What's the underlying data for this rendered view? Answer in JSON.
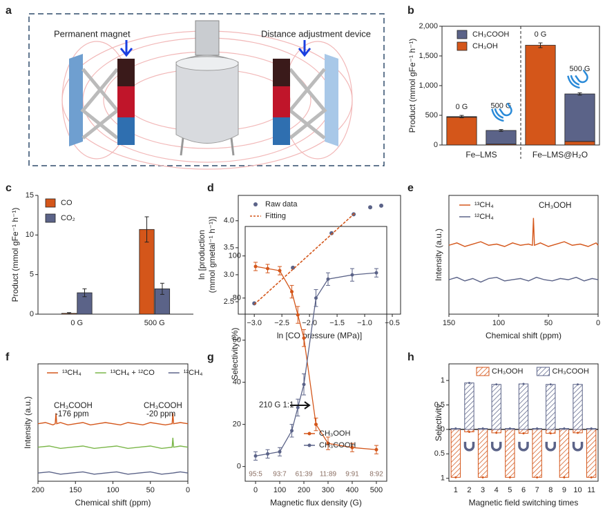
{
  "illustration": {
    "panel": "a",
    "labels": [
      "Permanent magnet",
      "Distance adjustment device"
    ]
  },
  "chart_data": [
    {
      "panel": "b",
      "type": "stacked_bar",
      "categories": [
        "0 G",
        "500 G",
        "0 G",
        "500 G"
      ],
      "group_labels": [
        "Fe–LMS",
        "Fe–LMS@H₂O"
      ],
      "ylabel": "Product (mmol gFe⁻¹ h⁻¹)",
      "ylim": [
        0,
        2000
      ],
      "yticks": [
        0,
        500,
        {
          "value": 1000,
          "label": "1,000"
        },
        {
          "value": 1500,
          "label": "1,500"
        },
        {
          "value": 2000,
          "label": "2,000"
        }
      ],
      "series": [
        {
          "name": "CH₃COOH",
          "color": "#5b6388",
          "values": [
            10,
            230,
            0,
            800
          ],
          "errors": [
            20,
            15,
            40,
            20
          ]
        },
        {
          "name": "CH₃OH",
          "color": "#d4561a",
          "values": [
            468,
            15,
            1680,
            60
          ]
        }
      ]
    },
    {
      "panel": "c",
      "type": "bar",
      "categories": [
        "0 G",
        "500 G"
      ],
      "ylabel": "Product (mmol gFe⁻¹ h⁻¹)",
      "ylim": [
        0,
        15
      ],
      "yticks": [
        0,
        5,
        10,
        15
      ],
      "series": [
        {
          "name": "CO",
          "color": "#d4561a",
          "values": [
            0.1,
            10.7
          ],
          "errors": [
            0.1,
            1.6
          ]
        },
        {
          "name": "CO₂",
          "color": "#5b6388",
          "values": [
            2.7,
            3.2
          ],
          "errors": [
            0.5,
            0.7
          ]
        }
      ]
    },
    {
      "panel": "d",
      "type": "scatter",
      "xlabel": "ln [CO pressure (MPa)]",
      "ylabel": [
        "ln [production",
        "(mmol gmetal⁻¹ h⁻¹)]"
      ],
      "xlim": [
        -3.29,
        -0.35
      ],
      "ylim": [
        2.27,
        4.47
      ],
      "xticks": [
        {
          "value": -3,
          "label": "−3.0"
        },
        {
          "value": -2.5,
          "label": "−2.5"
        },
        {
          "value": -2,
          "label": "−2.0"
        },
        {
          "value": -1.5,
          "label": "−1.5"
        },
        {
          "value": -1,
          "label": "−1.0"
        },
        {
          "value": -0.5,
          "label": "−0.5"
        }
      ],
      "yticks": [
        2.5,
        {
          "value": 3,
          "label": "3.0"
        },
        3.5,
        {
          "value": 4,
          "label": "4.0"
        }
      ],
      "series": [
        {
          "name": "Raw data",
          "color": "#5b6388",
          "x": [
            -3.0,
            -2.3,
            -1.6,
            -1.2,
            -0.9,
            -0.7
          ],
          "values": [
            2.47,
            3.13,
            3.77,
            4.12,
            4.25,
            4.28
          ]
        },
        {
          "name": "Fitting",
          "color": "#d4561a",
          "style": "dashed",
          "x": [
            -3.0,
            -1.18
          ],
          "values": [
            2.45,
            4.14
          ]
        }
      ]
    },
    {
      "panel": "e",
      "type": "spectrum",
      "xlabel": "Chemical shift (ppm)",
      "ylabel": "Intensity (a.u.)",
      "xlim": [
        150,
        0
      ],
      "ylim": [
        0,
        10
      ],
      "xticks": [
        150,
        100,
        50,
        0
      ],
      "annotations": [
        "CH₃OOH"
      ],
      "series": [
        {
          "name": "¹³CH₄",
          "color": "#d4561a",
          "x": [
            150,
            142,
            134,
            126,
            118,
            110,
            102,
            94,
            86,
            78,
            70,
            66,
            65,
            64,
            58,
            50,
            42,
            34,
            26,
            18,
            10,
            2,
            0
          ],
          "values": [
            5.8,
            6.0,
            5.7,
            5.9,
            6.1,
            5.8,
            5.9,
            5.7,
            6.0,
            5.8,
            5.9,
            5.8,
            8.1,
            5.8,
            6.0,
            5.7,
            5.9,
            6.1,
            5.8,
            5.9,
            5.7,
            6.0,
            5.8
          ]
        },
        {
          "name": "¹²CH₄",
          "color": "#5b6388",
          "x": [
            150,
            142,
            134,
            126,
            118,
            110,
            102,
            94,
            86,
            78,
            70,
            62,
            54,
            46,
            38,
            30,
            22,
            14,
            6,
            0
          ],
          "values": [
            2.9,
            3.1,
            2.8,
            3.0,
            2.7,
            3.0,
            3.1,
            2.8,
            2.9,
            3.0,
            2.8,
            3.1,
            2.9,
            2.8,
            3.0,
            2.9,
            3.1,
            2.8,
            3.0,
            2.9
          ]
        }
      ]
    },
    {
      "panel": "f",
      "type": "spectrum",
      "xlabel": "Chemical shift (ppm)",
      "ylabel": "Intensity (a.u.)",
      "xlim": [
        200,
        0
      ],
      "ylim": [
        0,
        10
      ],
      "xticks": [
        200,
        150,
        100,
        50,
        0
      ],
      "annotations": [
        "CH₃COOH",
        "-176 ppm",
        "CH₃COOH",
        "-20 ppm"
      ],
      "series": [
        {
          "name": "¹³CH₄",
          "color": "#d4561a",
          "x": [
            200,
            190,
            180,
            177,
            176,
            175,
            170,
            160,
            150,
            140,
            130,
            120,
            110,
            100,
            90,
            80,
            70,
            60,
            50,
            40,
            30,
            21,
            20,
            19,
            10,
            0
          ],
          "values": [
            4.9,
            5.0,
            4.8,
            4.9,
            5.8,
            4.9,
            5.0,
            4.8,
            4.9,
            5.0,
            4.8,
            4.9,
            5.0,
            4.9,
            4.8,
            5.0,
            4.9,
            4.8,
            5.0,
            4.9,
            4.8,
            4.9,
            5.8,
            4.9,
            5.0,
            4.9
          ]
        },
        {
          "name": "¹³CH₄ + ¹²CO",
          "color": "#7ab648",
          "x": [
            200,
            185,
            170,
            155,
            140,
            125,
            110,
            95,
            80,
            65,
            50,
            35,
            21,
            20,
            19,
            10,
            0
          ],
          "values": [
            2.9,
            3.0,
            2.8,
            2.9,
            3.0,
            2.8,
            2.9,
            3.0,
            2.8,
            2.9,
            3.0,
            2.8,
            2.9,
            3.7,
            2.9,
            3.0,
            2.9
          ]
        },
        {
          "name": "¹²CH₄",
          "color": "#5b6388",
          "x": [
            200,
            185,
            170,
            155,
            140,
            125,
            110,
            95,
            80,
            65,
            50,
            35,
            20,
            10,
            0
          ],
          "values": [
            0.7,
            0.8,
            0.6,
            0.7,
            0.8,
            0.6,
            0.7,
            0.8,
            0.6,
            0.7,
            0.8,
            0.6,
            0.7,
            0.8,
            0.7
          ]
        }
      ]
    },
    {
      "panel": "g",
      "type": "line",
      "xlabel": "Magnetic flux density (G)",
      "ylabel": "Selectivity (%)",
      "xlim": [
        -43,
        543
      ],
      "ylim": [
        -7,
        114
      ],
      "xticks": [
        0,
        100,
        200,
        300,
        400,
        500
      ],
      "yticks": [
        0,
        20,
        40,
        60,
        80,
        100
      ],
      "annotations": [
        "210 G 1:1"
      ],
      "ratio_labels": [
        "95:5",
        "93:7",
        "61:39",
        "11:89",
        "9:91",
        "8:92"
      ],
      "series": [
        {
          "name": "CH₃OOH",
          "color": "#d4561a",
          "x": [
            0,
            50,
            100,
            150,
            175,
            200,
            250,
            300,
            400,
            500
          ],
          "values": [
            95,
            94,
            93,
            83,
            72,
            61,
            20,
            11,
            9,
            8
          ],
          "errors": [
            2,
            2,
            2,
            3,
            4,
            4,
            3,
            3,
            2,
            2
          ]
        },
        {
          "name": "CH₃COOH",
          "color": "#5b6388",
          "x": [
            0,
            50,
            100,
            150,
            175,
            200,
            250,
            300,
            400,
            500
          ],
          "values": [
            5,
            6,
            7,
            17,
            28,
            39,
            80,
            89,
            91,
            92
          ],
          "errors": [
            2,
            2,
            2,
            3,
            4,
            5,
            4,
            3,
            3,
            2
          ]
        }
      ]
    },
    {
      "panel": "h",
      "type": "diverging_bar",
      "xlabel": "Magnetic field switching times",
      "ylabel": "Selectivity",
      "categories": [
        "1",
        "2",
        "3",
        "4",
        "5",
        "6",
        "7",
        "8",
        "9",
        "10",
        "11"
      ],
      "ylim": [
        -1.06,
        1.34
      ],
      "yticks": [
        {
          "value": -1,
          "label": "1"
        },
        {
          "value": -0.5,
          "label": "0.5"
        },
        0,
        0.5,
        1
      ],
      "series": [
        {
          "name": "CH₃OOH",
          "color": "#d4561a",
          "direction": "down",
          "values": [
            0.98,
            0.05,
            0.98,
            0.07,
            0.98,
            0.08,
            0.98,
            0.08,
            0.98,
            0.07,
            0.98
          ]
        },
        {
          "name": "CH₃COOH",
          "color": "#5b6388",
          "direction": "up",
          "values": [
            0.02,
            0.95,
            0.02,
            0.92,
            0.02,
            0.93,
            0.02,
            0.92,
            0.02,
            0.92,
            0.02
          ]
        }
      ]
    }
  ]
}
